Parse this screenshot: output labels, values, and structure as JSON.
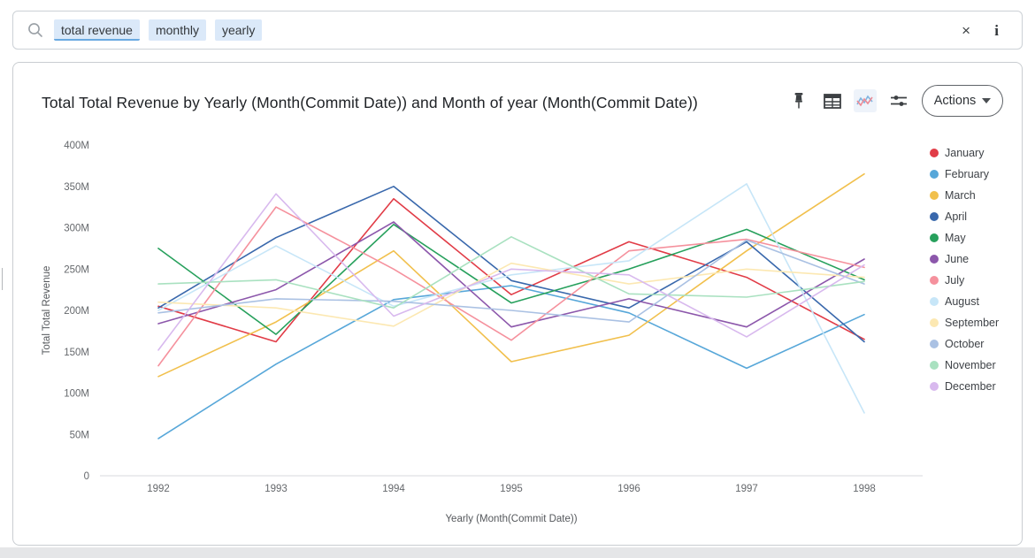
{
  "search": {
    "tokens": [
      {
        "label": "total revenue",
        "active": true
      },
      {
        "label": "monthly",
        "active": false
      },
      {
        "label": "yearly",
        "active": false
      }
    ],
    "clear_icon": "×",
    "info_icon": "i"
  },
  "card": {
    "title": "Total Total Revenue by Yearly (Month(Commit Date)) and Month of year (Month(Commit Date))",
    "toolbar": {
      "icons": [
        "pin-icon",
        "table-icon",
        "line-chart-icon",
        "sliders-icon"
      ],
      "actions_label": "Actions"
    }
  },
  "chart_data": {
    "type": "line",
    "title": "Total Total Revenue by Yearly (Month(Commit Date)) and Month of year (Month(Commit Date))",
    "xlabel": "Yearly (Month(Commit Date))",
    "ylabel": "Total Total Revenue",
    "x": [
      1992,
      1993,
      1994,
      1995,
      1996,
      1997,
      1998
    ],
    "ylim_millions": [
      0,
      400
    ],
    "y_ticks": [
      {
        "v": 0,
        "label": "0"
      },
      {
        "v": 50,
        "label": "50M"
      },
      {
        "v": 100,
        "label": "100M"
      },
      {
        "v": 150,
        "label": "150M"
      },
      {
        "v": 200,
        "label": "200M"
      },
      {
        "v": 250,
        "label": "250M"
      },
      {
        "v": 300,
        "label": "300M"
      },
      {
        "v": 350,
        "label": "350M"
      },
      {
        "v": 400,
        "label": "400M"
      }
    ],
    "grid": false,
    "legend_position": "right",
    "values_unit": "millions",
    "series": [
      {
        "name": "January",
        "color": "#e13c47",
        "values": [
          205,
          162,
          335,
          219,
          283,
          240,
          165
        ]
      },
      {
        "name": "February",
        "color": "#57a7d9",
        "values": [
          45,
          135,
          213,
          230,
          197,
          130,
          195
        ]
      },
      {
        "name": "March",
        "color": "#f1c04d",
        "values": [
          120,
          186,
          272,
          138,
          170,
          272,
          365
        ]
      },
      {
        "name": "April",
        "color": "#3968ac",
        "values": [
          203,
          288,
          350,
          236,
          203,
          283,
          162
        ]
      },
      {
        "name": "May",
        "color": "#27a05c",
        "values": [
          275,
          171,
          304,
          209,
          250,
          298,
          237
        ]
      },
      {
        "name": "June",
        "color": "#8c57ab",
        "values": [
          184,
          225,
          307,
          180,
          214,
          180,
          262
        ]
      },
      {
        "name": "July",
        "color": "#f5919d",
        "values": [
          133,
          325,
          250,
          164,
          272,
          286,
          252
        ]
      },
      {
        "name": "August",
        "color": "#c7e6f8",
        "values": [
          200,
          278,
          205,
          243,
          260,
          353,
          76
        ]
      },
      {
        "name": "September",
        "color": "#fce8b2",
        "values": [
          210,
          203,
          181,
          257,
          232,
          250,
          240
        ]
      },
      {
        "name": "October",
        "color": "#aac1e3",
        "values": [
          197,
          214,
          211,
          200,
          186,
          285,
          232
        ]
      },
      {
        "name": "November",
        "color": "#a9e1c0",
        "values": [
          232,
          237,
          203,
          289,
          220,
          216,
          235
        ]
      },
      {
        "name": "December",
        "color": "#d8b9ee",
        "values": [
          152,
          341,
          193,
          250,
          243,
          168,
          255
        ]
      }
    ]
  }
}
